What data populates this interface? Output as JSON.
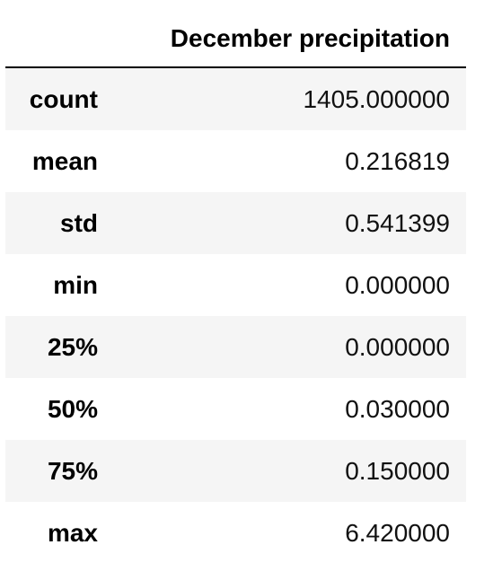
{
  "table": {
    "column_header": "December precipitation",
    "rows": [
      {
        "label": "count",
        "value": "1405.000000"
      },
      {
        "label": "mean",
        "value": "0.216819"
      },
      {
        "label": "std",
        "value": "0.541399"
      },
      {
        "label": "min",
        "value": "0.000000"
      },
      {
        "label": "25%",
        "value": "0.000000"
      },
      {
        "label": "50%",
        "value": "0.030000"
      },
      {
        "label": "75%",
        "value": "0.150000"
      },
      {
        "label": "max",
        "value": "6.420000"
      }
    ]
  },
  "colors": {
    "stripe": "#f5f5f5",
    "rule": "#000000",
    "background": "#ffffff"
  }
}
